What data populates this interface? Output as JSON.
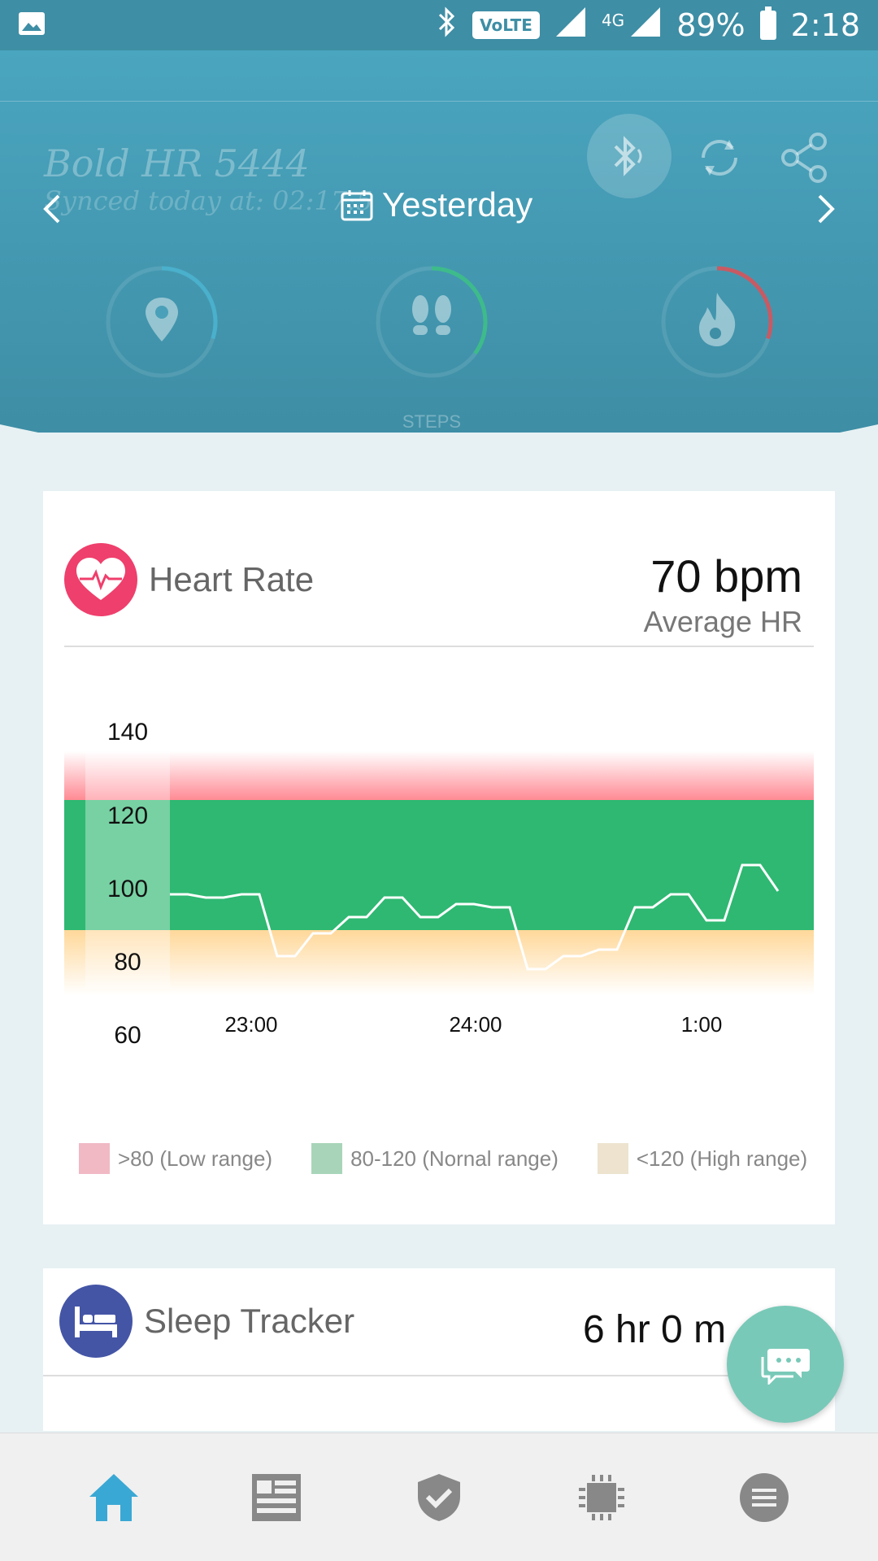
{
  "status_bar": {
    "battery": "89%",
    "time": "2:18",
    "network": "4G",
    "volte": "VoLTE"
  },
  "header": {
    "device_name": "Bold HR 5444",
    "synced_text": "Synced today at: 02:17:5",
    "date_label": "Yesterday",
    "rings": [
      {
        "name": "distance",
        "progress": 0.3,
        "color": "#4ab0cc"
      },
      {
        "name": "steps",
        "label": "STEPS",
        "progress": 0.35,
        "color": "#3dbb8a"
      },
      {
        "name": "calories",
        "progress": 0.3,
        "color": "#c85a63"
      }
    ]
  },
  "heart_rate": {
    "title": "Heart Rate",
    "value": "70 bpm",
    "subtitle": "Average HR",
    "legend": [
      {
        "label": ">80 (Low range)",
        "color": "#f0b9c4"
      },
      {
        "label": "80-120 (Nornal range)",
        "color": "#a8d5b9"
      },
      {
        "label": "<120 (High range)",
        "color": "#ede3cf"
      }
    ],
    "chart_data": {
      "type": "line",
      "y_ticks": [
        "140",
        "120",
        "100",
        "80",
        "60"
      ],
      "x_ticks": [
        "23:00",
        "24:00",
        "1:00"
      ],
      "ylim": [
        60,
        140
      ],
      "bands": [
        {
          "from": 80,
          "to": 120,
          "color": "#2eb872"
        }
      ],
      "series": [
        {
          "values": [
            91,
            91,
            90,
            90,
            91,
            91,
            72,
            72,
            79,
            79,
            84,
            84,
            90,
            90,
            84,
            84,
            88,
            88,
            87,
            87,
            68,
            68,
            72,
            72,
            74,
            74,
            87,
            87,
            91,
            91,
            83,
            83,
            100,
            100,
            92
          ]
        }
      ]
    }
  },
  "sleep": {
    "title": "Sleep Tracker",
    "value": "6 hr 0 m"
  }
}
